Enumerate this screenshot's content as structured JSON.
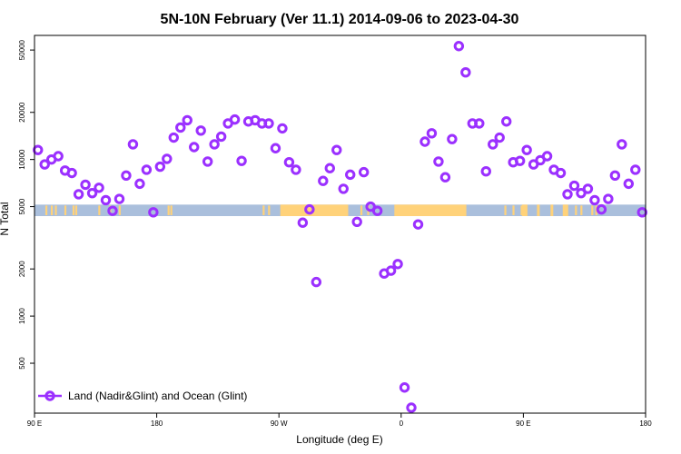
{
  "chart_data": {
    "type": "scatter",
    "title": "5N-10N February (Ver 11.1)   2014-09-06 to 2023-04-30",
    "xlabel": "Longitude (deg E)",
    "ylabel": "N Total",
    "y_scale": "log",
    "ylim": [
      240,
      62000
    ],
    "x_ticks": [
      {
        "label": "90 E",
        "pos": 0
      },
      {
        "label": "180",
        "pos": 90
      },
      {
        "label": "90 W",
        "pos": 180
      },
      {
        "label": "0",
        "pos": 270
      },
      {
        "label": "90 E",
        "pos": 360
      },
      {
        "label": "180",
        "pos": 450
      }
    ],
    "y_ticks": [
      500,
      1000,
      2000,
      5000,
      10000,
      20000,
      50000
    ],
    "xlim": [
      0,
      450
    ],
    "grid": false,
    "legend_position": "bottom-left",
    "series": [
      {
        "name": "Land (Nadir&Glint) and Ocean (Glint)",
        "color": "#9b30ff",
        "marker": "open-circle",
        "x": [
          2.5,
          7.5,
          12.5,
          17.5,
          22.5,
          27.5,
          32.5,
          37.5,
          42.5,
          47.5,
          52.5,
          57.5,
          62.5,
          67.5,
          72.5,
          77.5,
          82.5,
          87.5,
          92.5,
          97.5,
          102.5,
          107.5,
          112.5,
          117.5,
          122.5,
          127.5,
          132.5,
          137.5,
          142.5,
          147.5,
          152.5,
          157.5,
          162.5,
          167.5,
          172.5,
          177.5,
          182.5,
          187.5,
          192.5,
          197.5,
          202.5,
          207.5,
          212.5,
          217.5,
          222.5,
          227.5,
          232.5,
          237.5,
          242.5,
          247.5,
          252.5,
          257.5,
          262.5,
          267.5,
          272.5,
          277.5,
          282.5,
          287.5,
          292.5,
          297.5,
          302.5,
          307.5,
          312.5,
          317.5,
          322.5,
          327.5,
          332.5,
          337.5,
          342.5,
          347.5,
          352.5,
          357.5,
          362.5,
          367.5,
          372.5,
          377.5,
          382.5,
          387.5,
          392.5,
          397.5,
          402.5,
          407.5,
          412.5,
          417.5,
          422.5,
          427.5,
          432.5,
          437.5,
          442.5,
          447.5
        ],
        "values": [
          11500,
          9300,
          10000,
          10500,
          8500,
          8200,
          6000,
          6900,
          6100,
          6600,
          5500,
          4700,
          5600,
          7900,
          12500,
          7000,
          8600,
          4600,
          9000,
          10100,
          13800,
          16000,
          17800,
          12000,
          15300,
          9700,
          12500,
          14000,
          17000,
          18000,
          9800,
          17500,
          17800,
          17000,
          17000,
          11800,
          15800,
          9600,
          8600,
          3950,
          4800,
          1650,
          7300,
          8800,
          11500,
          6500,
          8000,
          4000,
          8300,
          5000,
          4700,
          1870,
          1950,
          2150,
          350,
          260,
          3850,
          13000,
          14700,
          9700,
          7700,
          13500,
          53000,
          36000,
          17000,
          17000,
          8400,
          12500,
          13800,
          17500,
          9600,
          9800,
          11500,
          9300,
          9900,
          10500,
          8600,
          8200,
          6000,
          6800,
          6100,
          6500,
          5500,
          4800,
          5600,
          7900,
          12500,
          7000,
          8600,
          4600
        ]
      }
    ],
    "background_band": {
      "description": "land/ocean strip",
      "y_range": [
        4350,
        5150
      ],
      "ocean_color": "#aabfdc",
      "land_color": "#ffd27a"
    }
  }
}
